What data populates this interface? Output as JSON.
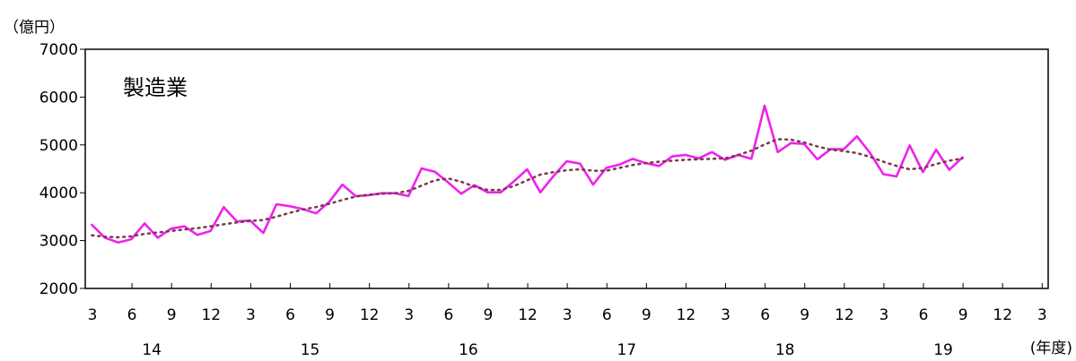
{
  "chart_data": {
    "type": "line",
    "title": "製造業",
    "ylabel": "（億円）",
    "xlabel": "(年度)",
    "ylim": [
      2000,
      7000
    ],
    "yticks": [
      2000,
      3000,
      4000,
      5000,
      6000,
      7000
    ],
    "month_tick_labels": [
      "3",
      "6",
      "9",
      "12",
      "3",
      "6",
      "9",
      "12",
      "3",
      "6",
      "9",
      "12",
      "3",
      "6",
      "9",
      "12",
      "3",
      "6",
      "9",
      "12",
      "3",
      "6",
      "9",
      "12",
      "3"
    ],
    "year_labels": [
      "14",
      "15",
      "16",
      "17",
      "18",
      "19"
    ],
    "grid": false,
    "legend": "none",
    "series": [
      {
        "style": "solid",
        "color": "#ee22ee",
        "values": [
          3330,
          3060,
          2960,
          3030,
          3360,
          3060,
          3250,
          3300,
          3120,
          3200,
          3700,
          3400,
          3420,
          3160,
          3760,
          3720,
          3660,
          3570,
          3810,
          4170,
          3930,
          3950,
          3990,
          3990,
          3930,
          4510,
          4440,
          4220,
          3980,
          4160,
          4010,
          4010,
          4240,
          4490,
          4010,
          4350,
          4660,
          4610,
          4170,
          4520,
          4590,
          4710,
          4620,
          4560,
          4760,
          4790,
          4720,
          4850,
          4690,
          4790,
          4710,
          5820,
          4850,
          5040,
          5020,
          4700,
          4910,
          4910,
          5180,
          4830,
          4390,
          4340,
          4990,
          4430,
          4900,
          4480,
          4740
        ]
      },
      {
        "style": "dotted",
        "color": "#7a3a4a",
        "values": [
          3110,
          3080,
          3070,
          3090,
          3140,
          3170,
          3200,
          3230,
          3260,
          3300,
          3340,
          3380,
          3410,
          3430,
          3500,
          3580,
          3650,
          3700,
          3770,
          3850,
          3920,
          3960,
          3980,
          3990,
          4040,
          4150,
          4260,
          4300,
          4230,
          4130,
          4060,
          4060,
          4140,
          4260,
          4380,
          4430,
          4470,
          4490,
          4460,
          4460,
          4520,
          4580,
          4620,
          4650,
          4670,
          4690,
          4700,
          4710,
          4720,
          4790,
          4880,
          5010,
          5120,
          5110,
          5050,
          4970,
          4900,
          4870,
          4830,
          4750,
          4650,
          4560,
          4490,
          4520,
          4600,
          4670,
          4720
        ]
      }
    ]
  }
}
